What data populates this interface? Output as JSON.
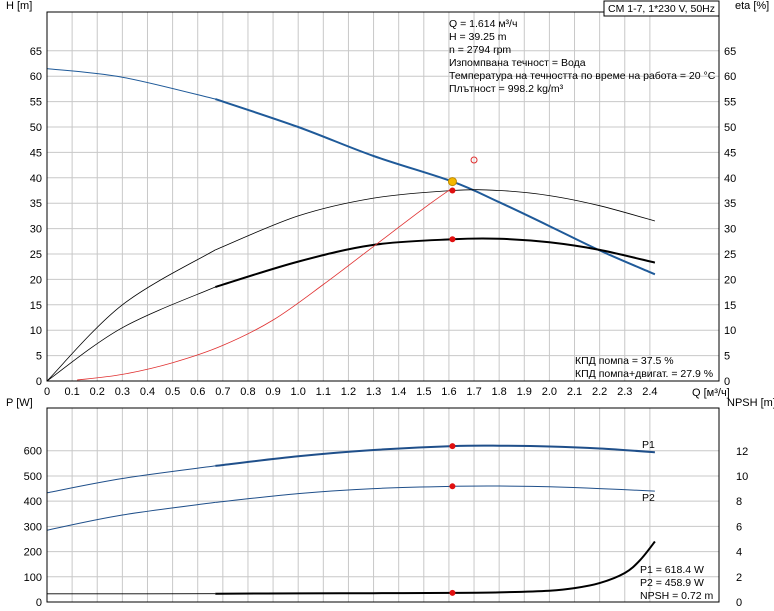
{
  "window_title": "CM 1-7, 1*230 V, 50Hz",
  "info": {
    "q_text": "Q = 1.614 м³/ч",
    "h_text": "H = 39.25 m",
    "n_text": "n = 2794 rpm",
    "liquid_text": "Изпомпвана течност = Вода",
    "temp_text": "Температура на течността по време на работа = 20 °C",
    "density_text": "Плътност = 998.2 kg/m³"
  },
  "efficiency_labels": {
    "pump": "КПД помпа = 37.5 %",
    "total": "КПД помпа+двигат. = 27.9 %"
  },
  "power_labels": {
    "p1": "P1 = 618.4 W",
    "p2": "P2 = 458.9 W",
    "npsh": "NPSH = 0.72 m"
  },
  "colors": {
    "head_curve": "#1f5a99",
    "power_curve": "#1f4f8a",
    "eta_curve": "#000000",
    "aux_curve": "#e03030",
    "duty_point": "#e01010",
    "duty_marker": "#f5b800",
    "grid": "#c8c8c8"
  },
  "chart_data": [
    {
      "type": "line",
      "title": "",
      "xlabel": "Q [м³/ч]",
      "ylabel": "H [m]",
      "y2label": "eta [%]",
      "xlim": [
        0,
        2.5
      ],
      "ylim": [
        0,
        70
      ],
      "y2lim": [
        0,
        70
      ],
      "x_ticks": [
        "0",
        "0.1",
        "0.2",
        "0.3",
        "0.4",
        "0.5",
        "0.6",
        "0.7",
        "0.8",
        "0.9",
        "1.0",
        "1.1",
        "1.2",
        "1.3",
        "1.4",
        "1.5",
        "1.6",
        "1.7",
        "1.8",
        "1.9",
        "2.0",
        "2.1",
        "2.2",
        "2.3",
        "2.4"
      ],
      "y_ticks": [
        0,
        5,
        10,
        15,
        20,
        25,
        30,
        35,
        40,
        45,
        50,
        55,
        60,
        65
      ],
      "grid": true,
      "series": [
        {
          "id": "head",
          "axis": "left",
          "x": [
            0,
            0.3,
            0.67,
            1.0,
            1.3,
            1.614,
            1.8,
            2.0,
            2.2,
            2.42
          ],
          "values": [
            61.5,
            59.8,
            55.5,
            50.0,
            44.3,
            39.25,
            35.2,
            30.5,
            25.7,
            21.0
          ]
        },
        {
          "id": "eta_pump",
          "axis": "right",
          "x": [
            0,
            0.3,
            0.67,
            1.0,
            1.3,
            1.614,
            1.8,
            2.0,
            2.2,
            2.42
          ],
          "values": [
            0,
            15.0,
            25.8,
            32.5,
            36.0,
            37.5,
            37.5,
            36.5,
            34.5,
            31.5
          ]
        },
        {
          "id": "eta_total",
          "axis": "right",
          "x": [
            0,
            0.3,
            0.67,
            1.0,
            1.3,
            1.614,
            1.8,
            2.0,
            2.2,
            2.42
          ],
          "values": [
            0,
            10.5,
            18.5,
            23.5,
            26.8,
            27.9,
            28.0,
            27.3,
            25.8,
            23.3
          ]
        },
        {
          "id": "aux",
          "axis": "left",
          "x": [
            0.12,
            0.3,
            0.5,
            0.7,
            0.9,
            1.1,
            1.3,
            1.5,
            1.614
          ],
          "values": [
            0.2,
            1.3,
            3.6,
            7.0,
            12.0,
            19.0,
            26.5,
            34.0,
            38.0
          ]
        }
      ],
      "duty_points": [
        {
          "x": 1.614,
          "y": 39.25,
          "axis": "left",
          "marker": "yellow"
        },
        {
          "x": 1.614,
          "y": 37.5,
          "axis": "right"
        },
        {
          "x": 1.614,
          "y": 27.9,
          "axis": "right"
        }
      ],
      "open_marker": {
        "x": 1.7,
        "y": 43.5
      }
    },
    {
      "type": "line",
      "title": "",
      "xlabel": "",
      "ylabel": "P [W]",
      "y2label": "NPSH [m]",
      "xlim": [
        0,
        2.5
      ],
      "ylim": [
        0,
        700
      ],
      "y2lim": [
        0,
        14
      ],
      "y_ticks": [
        0,
        100,
        200,
        300,
        400,
        500,
        600
      ],
      "y2_ticks": [
        0,
        2,
        4,
        6,
        8,
        10,
        12
      ],
      "grid": true,
      "series": [
        {
          "id": "p1",
          "name": "P1",
          "axis": "left",
          "x": [
            0,
            0.3,
            0.67,
            1.0,
            1.3,
            1.614,
            1.8,
            2.0,
            2.2,
            2.42
          ],
          "values": [
            433,
            490,
            540,
            578,
            603,
            618.4,
            620,
            617,
            609,
            594
          ]
        },
        {
          "id": "p2",
          "name": "P2",
          "axis": "left",
          "x": [
            0,
            0.3,
            0.67,
            1.0,
            1.3,
            1.614,
            1.8,
            2.0,
            2.2,
            2.42
          ],
          "values": [
            285,
            345,
            395,
            430,
            450,
            458.9,
            460,
            457,
            450,
            440
          ]
        },
        {
          "id": "npsh",
          "axis": "right",
          "x": [
            0,
            0.4,
            0.67,
            1.0,
            1.3,
            1.614,
            1.8,
            2.0,
            2.1,
            2.2,
            2.3,
            2.36,
            2.42
          ],
          "values": [
            0.65,
            0.65,
            0.66,
            0.68,
            0.7,
            0.72,
            0.76,
            0.9,
            1.1,
            1.5,
            2.3,
            3.3,
            4.8
          ]
        }
      ],
      "duty_points": [
        {
          "x": 1.614,
          "y": 618.4,
          "axis": "left"
        },
        {
          "x": 1.614,
          "y": 458.9,
          "axis": "left"
        },
        {
          "x": 1.614,
          "y": 0.72,
          "axis": "right"
        }
      ]
    }
  ]
}
